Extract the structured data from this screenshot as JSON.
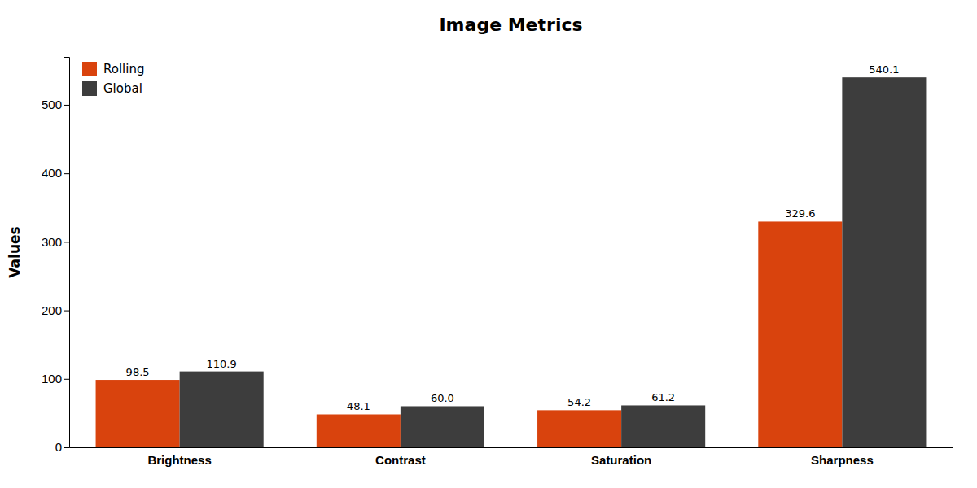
{
  "chart_data": {
    "type": "bar",
    "title": "Image Metrics",
    "ylabel": "Values",
    "categories": [
      "Brightness",
      "Contrast",
      "Saturation",
      "Sharpness"
    ],
    "series": [
      {
        "name": "Rolling",
        "color": "#d9430d",
        "values": [
          98.5,
          48.1,
          54.2,
          329.6
        ],
        "value_labels": [
          "98.5",
          "48.1",
          "54.2",
          "329.6"
        ]
      },
      {
        "name": "Global",
        "color": "#3d3d3d",
        "values": [
          110.9,
          60.0,
          61.2,
          540.1
        ],
        "value_labels": [
          "110.9",
          "60.0",
          "61.2",
          "540.1"
        ]
      }
    ],
    "ylim": [
      0,
      570
    ],
    "yticks": [
      0,
      100,
      200,
      300,
      400,
      500
    ],
    "grid": false,
    "legend": "top-left",
    "data_labels": true
  }
}
